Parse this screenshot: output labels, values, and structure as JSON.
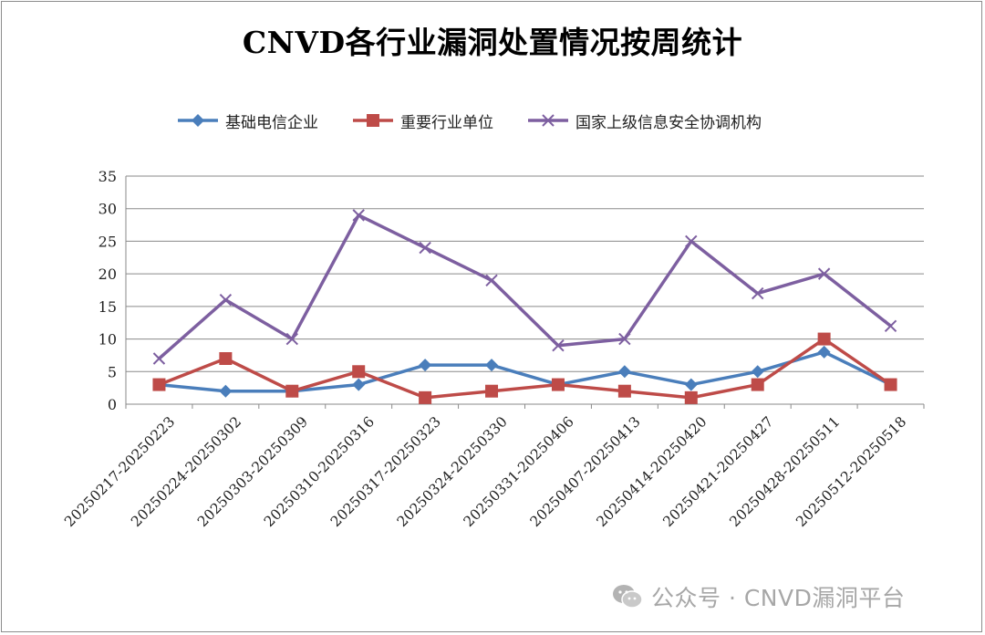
{
  "chart_data": {
    "type": "line",
    "title": "CNVD各行业漏洞处置情况按周统计",
    "xlabel": "",
    "ylabel": "",
    "ylim": [
      0,
      35
    ],
    "yticks": [
      0,
      5,
      10,
      15,
      20,
      25,
      30,
      35
    ],
    "grid": true,
    "legend_position": "top",
    "categories": [
      "20250217-20250223",
      "20250224-20250302",
      "20250303-20250309",
      "20250310-20250316",
      "20250317-20250323",
      "20250324-20250330",
      "20250331-20250406",
      "20250407-20250413",
      "20250414-20250420",
      "20250421-20250427",
      "20250428-20250511",
      "20250512-20250518"
    ],
    "series": [
      {
        "name": "基础电信企业",
        "color": "#4a7ebb",
        "marker": "diamond",
        "values": [
          3,
          2,
          2,
          3,
          6,
          6,
          3,
          5,
          3,
          5,
          8,
          3
        ]
      },
      {
        "name": "重要行业单位",
        "color": "#be4b48",
        "marker": "square",
        "values": [
          3,
          7,
          2,
          5,
          1,
          2,
          3,
          2,
          1,
          3,
          10,
          3
        ]
      },
      {
        "name": "国家上级信息安全协调机构",
        "color": "#7d5fa0",
        "marker": "x",
        "values": [
          7,
          16,
          10,
          29,
          24,
          19,
          9,
          10,
          25,
          17,
          20,
          12
        ]
      }
    ]
  },
  "watermark": {
    "text": "公众号 · CNVD漏洞平台",
    "icon": "wechat-icon"
  }
}
